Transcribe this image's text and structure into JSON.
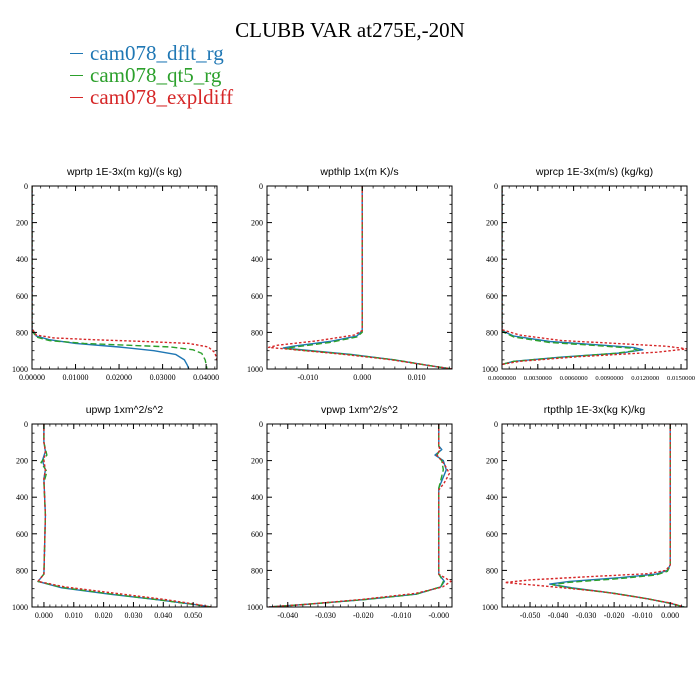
{
  "title": "CLUBB VAR at275E,-20N",
  "legend": [
    {
      "label": "cam078_dflt_rg",
      "color": "#1f77b4",
      "dash": "solid"
    },
    {
      "label": "cam078_qt5_rg",
      "color": "#2ca02c",
      "dash": "dashed"
    },
    {
      "label": "cam078_expldiff",
      "color": "#d62728",
      "dash": "dotted"
    }
  ],
  "chart_data": [
    {
      "type": "line",
      "title": "wprtp  1E-3x(m kg)/(s kg)",
      "xlim": [
        0,
        0.0425
      ],
      "ylim": [
        1000,
        0
      ],
      "xticks": [
        0,
        0.01,
        0.02,
        0.03,
        0.04
      ],
      "xtick_labels": [
        "0.00000",
        "0.01000",
        "0.02000",
        "0.03000",
        "0.04000"
      ],
      "yticks": [
        0,
        200,
        400,
        600,
        800,
        1000
      ],
      "ytick_labels": [
        "0",
        "200",
        "400",
        "600",
        "800",
        "1000"
      ],
      "series": [
        {
          "name": "cam078_dflt_rg",
          "x": [
            0,
            0,
            0.001,
            0.004,
            0.01,
            0.02,
            0.028,
            0.033,
            0.035,
            0.0357,
            0.036
          ],
          "y": [
            0,
            780,
            820,
            840,
            860,
            880,
            900,
            920,
            950,
            980,
            1000
          ]
        },
        {
          "name": "cam078_qt5_rg",
          "x": [
            0,
            0,
            0.001,
            0.004,
            0.012,
            0.022,
            0.032,
            0.037,
            0.039,
            0.0398,
            0.0402
          ],
          "y": [
            0,
            790,
            825,
            845,
            860,
            870,
            880,
            895,
            915,
            950,
            1000
          ]
        },
        {
          "name": "cam078_expldiff",
          "x": [
            0,
            0,
            0.001,
            0.005,
            0.014,
            0.026,
            0.036,
            0.0405,
            0.042,
            0.0425,
            0.0428
          ],
          "y": [
            0,
            780,
            815,
            830,
            840,
            850,
            860,
            880,
            910,
            950,
            1000
          ]
        }
      ]
    },
    {
      "type": "line",
      "title": "wpthlp  1x(m K)/s",
      "xlim": [
        -0.0175,
        0.0165
      ],
      "ylim": [
        1000,
        0
      ],
      "xticks": [
        -0.01,
        0,
        0.01
      ],
      "xtick_labels": [
        "-0.010",
        "0.000",
        "0.010"
      ],
      "yticks": [
        0,
        200,
        400,
        600,
        800,
        1000
      ],
      "ytick_labels": [
        "0",
        "200",
        "400",
        "600",
        "800",
        "1000"
      ],
      "series": [
        {
          "name": "cam078_dflt_rg",
          "x": [
            0,
            0,
            -0.001,
            -0.006,
            -0.0125,
            -0.0145,
            -0.011,
            -0.002,
            0.006,
            0.012,
            0.0165
          ],
          "y": [
            0,
            790,
            820,
            850,
            875,
            885,
            895,
            920,
            950,
            980,
            1000
          ]
        },
        {
          "name": "cam078_qt5_rg",
          "x": [
            0,
            0,
            -0.001,
            -0.006,
            -0.012,
            -0.0142,
            -0.011,
            -0.002,
            0.006,
            0.012,
            0.0165
          ],
          "y": [
            0,
            800,
            825,
            855,
            878,
            888,
            898,
            922,
            950,
            980,
            1000
          ]
        },
        {
          "name": "cam078_expldiff",
          "x": [
            0,
            0,
            -0.0015,
            -0.008,
            -0.0155,
            -0.0172,
            -0.0135,
            -0.004,
            0.005,
            0.012,
            0.0165
          ],
          "y": [
            0,
            790,
            815,
            845,
            870,
            882,
            892,
            918,
            948,
            980,
            1000
          ]
        }
      ]
    },
    {
      "type": "line",
      "title": "wprcp  1E-3x(m/s) (kg/kg)",
      "xlim": [
        0,
        0.0155
      ],
      "ylim": [
        1000,
        0
      ],
      "xticks": [
        0,
        0.003,
        0.006,
        0.009,
        0.012,
        0.015
      ],
      "xtick_labels": [
        "0.0000000",
        "0.0030000",
        "0.0060000",
        "0.0090000",
        "0.0120000",
        "0.0150000"
      ],
      "yticks": [
        0,
        200,
        400,
        600,
        800,
        1000
      ],
      "ytick_labels": [
        "0",
        "200",
        "400",
        "600",
        "800",
        "1000"
      ],
      "series": [
        {
          "name": "cam078_dflt_rg",
          "x": [
            0,
            0,
            0.001,
            0.004,
            0.008,
            0.011,
            0.0118,
            0.01,
            0.005,
            0.001,
            0
          ],
          "y": [
            0,
            790,
            820,
            850,
            868,
            882,
            895,
            912,
            935,
            958,
            975
          ]
        },
        {
          "name": "cam078_qt5_rg",
          "x": [
            0,
            0,
            0.001,
            0.004,
            0.008,
            0.0108,
            0.0114,
            0.0095,
            0.005,
            0.001,
            0
          ],
          "y": [
            0,
            795,
            825,
            855,
            872,
            886,
            898,
            914,
            936,
            958,
            975
          ]
        },
        {
          "name": "cam078_expldiff",
          "x": [
            0,
            0,
            0.0015,
            0.005,
            0.01,
            0.0138,
            0.0155,
            0.013,
            0.0065,
            0.0015,
            0
          ],
          "y": [
            0,
            785,
            815,
            845,
            862,
            876,
            890,
            908,
            932,
            958,
            975
          ]
        }
      ]
    },
    {
      "type": "line",
      "title": "upwp  1xm^2/s^2",
      "xlim": [
        -0.004,
        0.058
      ],
      "ylim": [
        1000,
        0
      ],
      "xticks": [
        0,
        0.01,
        0.02,
        0.03,
        0.04,
        0.05
      ],
      "xtick_labels": [
        "0.000",
        "0.010",
        "0.020",
        "0.030",
        "0.040",
        "0.050"
      ],
      "yticks": [
        0,
        200,
        400,
        600,
        800,
        1000
      ],
      "ytick_labels": [
        "0",
        "200",
        "400",
        "600",
        "800",
        "1000"
      ],
      "series": [
        {
          "name": "cam078_dflt_rg",
          "x": [
            0,
            0,
            0.0005,
            -0.0005,
            0.0005,
            0,
            0.0005,
            0,
            -0.002,
            0.006,
            0.022,
            0.038,
            0.05,
            0.056
          ],
          "y": [
            0,
            100,
            150,
            200,
            250,
            300,
            500,
            820,
            860,
            895,
            930,
            960,
            985,
            1000
          ]
        },
        {
          "name": "cam078_qt5_rg",
          "x": [
            0,
            0,
            0.001,
            -0.001,
            0.001,
            0,
            0.0005,
            0,
            -0.002,
            0.006,
            0.022,
            0.038,
            0.05,
            0.056
          ],
          "y": [
            0,
            100,
            170,
            210,
            260,
            320,
            500,
            820,
            860,
            893,
            928,
            960,
            985,
            1000
          ]
        },
        {
          "name": "cam078_expldiff",
          "x": [
            0,
            0,
            0.0005,
            0,
            0.0005,
            0,
            0.0005,
            0,
            -0.002,
            0.007,
            0.024,
            0.04,
            0.051,
            0.056
          ],
          "y": [
            0,
            100,
            150,
            200,
            250,
            300,
            500,
            820,
            860,
            890,
            925,
            958,
            985,
            1000
          ]
        }
      ]
    },
    {
      "type": "line",
      "title": "vpwp  1xm^2/s^2",
      "xlim": [
        -0.0455,
        0.0035
      ],
      "ylim": [
        1000,
        0
      ],
      "xticks": [
        -0.04,
        -0.03,
        -0.02,
        -0.01,
        0
      ],
      "xtick_labels": [
        "-0.040",
        "-0.030",
        "-0.020",
        "-0.010",
        "-0.000"
      ],
      "yticks": [
        0,
        200,
        400,
        600,
        800,
        1000
      ],
      "ytick_labels": [
        "0",
        "200",
        "400",
        "600",
        "800",
        "1000"
      ],
      "series": [
        {
          "name": "cam078_dflt_rg",
          "x": [
            0,
            0,
            0.0008,
            -0.001,
            0.0012,
            0.002,
            0.001,
            0,
            0,
            0.0015,
            0.0005,
            -0.006,
            -0.02,
            -0.035,
            -0.045
          ],
          "y": [
            0,
            120,
            140,
            170,
            200,
            250,
            300,
            350,
            820,
            860,
            890,
            930,
            960,
            985,
            1000
          ]
        },
        {
          "name": "cam078_qt5_rg",
          "x": [
            0,
            0,
            0.0004,
            -0.0005,
            0.0008,
            0.0012,
            0.0006,
            0,
            0,
            0.0012,
            0.0005,
            -0.006,
            -0.02,
            -0.035,
            -0.045
          ],
          "y": [
            0,
            120,
            140,
            170,
            200,
            250,
            300,
            350,
            820,
            860,
            890,
            930,
            960,
            985,
            1000
          ]
        },
        {
          "name": "cam078_expldiff",
          "x": [
            0,
            0,
            0.0003,
            -0.0005,
            0.0015,
            0.0028,
            0.0015,
            0,
            0,
            0.0032,
            0.001,
            -0.006,
            -0.02,
            -0.035,
            -0.045
          ],
          "y": [
            0,
            120,
            140,
            170,
            220,
            270,
            320,
            360,
            820,
            860,
            890,
            925,
            958,
            985,
            1000
          ]
        }
      ]
    },
    {
      "type": "line",
      "title": "rtpthlp  1E-3x(kg K)/kg",
      "xlim": [
        -0.06,
        0.006
      ],
      "ylim": [
        1000,
        0
      ],
      "xticks": [
        -0.05,
        -0.04,
        -0.03,
        -0.02,
        -0.01,
        0
      ],
      "xtick_labels": [
        "-0.050",
        "-0.040",
        "-0.030",
        "-0.020",
        "-0.010",
        "0.000"
      ],
      "yticks": [
        0,
        200,
        400,
        600,
        800,
        1000
      ],
      "ytick_labels": [
        "0",
        "200",
        "400",
        "600",
        "800",
        "1000"
      ],
      "series": [
        {
          "name": "cam078_dflt_rg",
          "x": [
            0,
            0,
            -0.001,
            -0.005,
            -0.018,
            -0.036,
            -0.043,
            -0.035,
            -0.02,
            -0.008,
            0,
            0.005
          ],
          "y": [
            0,
            770,
            800,
            820,
            840,
            860,
            875,
            895,
            925,
            955,
            980,
            1000
          ]
        },
        {
          "name": "cam078_qt5_rg",
          "x": [
            0,
            0,
            -0.001,
            -0.005,
            -0.018,
            -0.036,
            -0.042,
            -0.035,
            -0.02,
            -0.008,
            0,
            0.005
          ],
          "y": [
            0,
            775,
            805,
            825,
            845,
            865,
            878,
            898,
            925,
            955,
            980,
            1000
          ]
        },
        {
          "name": "cam078_expldiff",
          "x": [
            0,
            0,
            -0.0015,
            -0.008,
            -0.03,
            -0.05,
            -0.059,
            -0.045,
            -0.025,
            -0.01,
            0,
            0.005
          ],
          "y": [
            0,
            770,
            800,
            818,
            835,
            852,
            866,
            885,
            915,
            950,
            978,
            1000
          ]
        }
      ]
    }
  ]
}
